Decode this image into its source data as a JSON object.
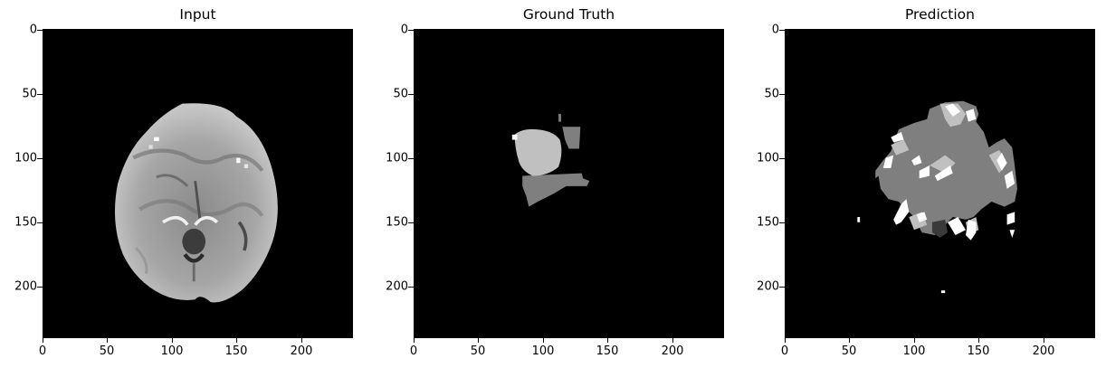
{
  "panels": [
    {
      "title": "Input",
      "kind": "mri"
    },
    {
      "title": "Ground Truth",
      "kind": "ground-truth"
    },
    {
      "title": "Prediction",
      "kind": "prediction"
    }
  ],
  "axis": {
    "xticks": [
      0,
      50,
      100,
      150,
      200
    ],
    "yticks": [
      0,
      50,
      100,
      150,
      200
    ],
    "range": [
      0,
      240
    ]
  },
  "colors": {
    "background": "#000000",
    "brain_bright": "#d6d6d6",
    "brain_mid": "#9a9a9a",
    "label_light": "#c0c0c0",
    "label_mid": "#7f7f7f",
    "label_dark": "#3a3a3a",
    "label_white": "#ffffff"
  }
}
